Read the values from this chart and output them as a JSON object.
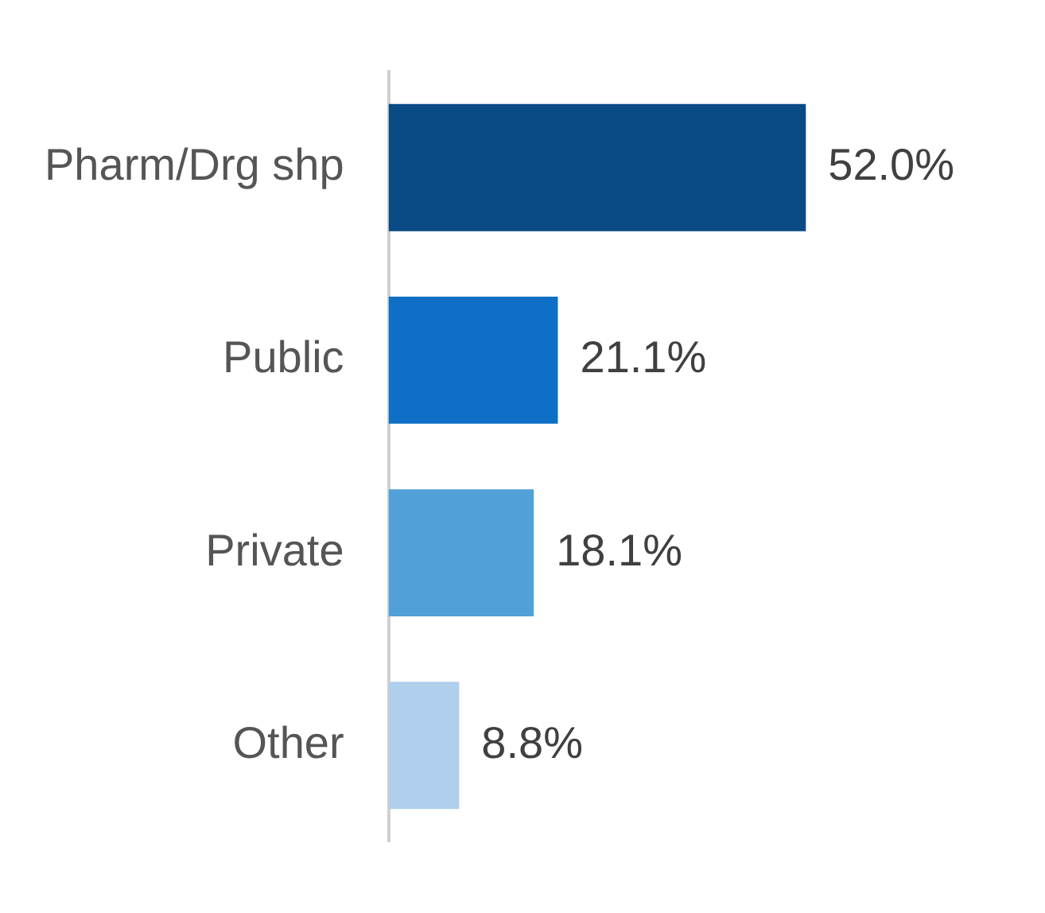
{
  "chart_data": {
    "type": "bar",
    "orientation": "horizontal",
    "categories": [
      "Pharm/Drg shp",
      "Public",
      "Private",
      "Other"
    ],
    "values": [
      52.0,
      21.1,
      18.1,
      8.8
    ],
    "colors": [
      "#0a4a85",
      "#0f6fc6",
      "#52a0d8",
      "#b0cfec"
    ],
    "value_labels": [
      "52.0%",
      "21.1%",
      "18.1%",
      "8.8%"
    ],
    "legend": false
  }
}
